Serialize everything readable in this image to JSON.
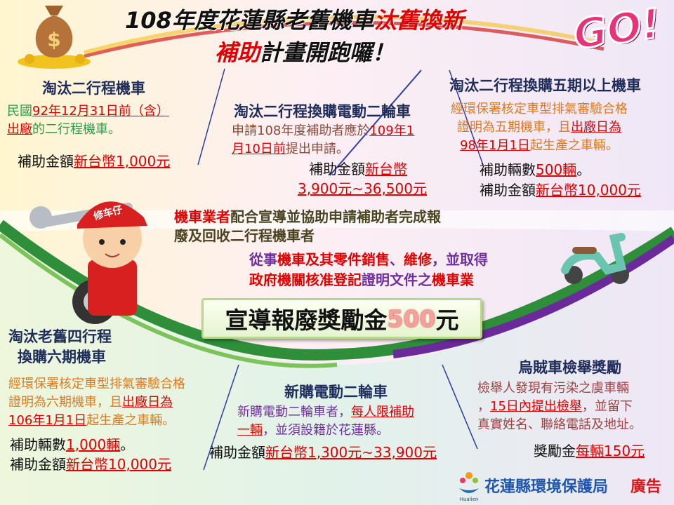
{
  "header": {
    "title_line1": [
      {
        "t": "108年度花蓮縣老舊機車",
        "s": "k"
      },
      {
        "t": "汰舊換新",
        "s": "rp"
      }
    ],
    "title_line2": [
      {
        "t": "補助",
        "s": "rp"
      },
      {
        "t": "計畫開跑囉！",
        "s": "k"
      }
    ],
    "go_badge": "GO!"
  },
  "sections": {
    "two_stroke": {
      "title": "淘汰二行程機車",
      "lines": [
        [
          {
            "t": "民國",
            "s": "g"
          },
          {
            "t": "92年12月31日前（含）",
            "s": "r"
          }
        ],
        [
          {
            "t": "出廠",
            "s": "r"
          },
          {
            "t": "的二行程機車。",
            "s": "g"
          }
        ]
      ],
      "amount": [
        {
          "t": "補助金額",
          "s": "k"
        },
        {
          "t": "新台幣1,000元",
          "s": "r"
        }
      ]
    },
    "two_stroke_to_electric": {
      "title": "淘汰二行程換購電動二輪車",
      "lines": [
        [
          {
            "t": "申請108年度補助者應於",
            "s": "b"
          },
          {
            "t": "109年1",
            "s": "r"
          }
        ],
        [
          {
            "t": "月10日前",
            "s": "r"
          },
          {
            "t": "提出申請。",
            "s": "b"
          }
        ]
      ],
      "amount": [
        {
          "t": "補助金額",
          "s": "k"
        },
        {
          "t": "新台幣",
          "s": "r"
        }
      ],
      "amount2": [
        {
          "t": "3,900元~36,500元",
          "s": "r"
        }
      ]
    },
    "two_stroke_to_phase5": {
      "title": "淘汰二行程換購五期以上機車",
      "lines": [
        [
          {
            "t": "經環保署核定車型排氣審驗合格",
            "s": "o"
          }
        ],
        [
          {
            "t": "證明為五期機車，且",
            "s": "o"
          },
          {
            "t": "出廠日為",
            "s": "r"
          }
        ],
        [
          {
            "t": "98年1月1日",
            "s": "r"
          },
          {
            "t": "起生產之車輛。",
            "s": "o"
          }
        ]
      ],
      "count": [
        {
          "t": "補助輛數",
          "s": "k"
        },
        {
          "t": "500輛",
          "s": "r"
        },
        {
          "t": "。",
          "s": "k"
        }
      ],
      "amount": [
        {
          "t": "補助金額",
          "s": "k"
        },
        {
          "t": "新台幣10,000元",
          "s": "r"
        }
      ]
    },
    "dealer": {
      "lines": [
        [
          {
            "t": "機車業者",
            "s": "rp"
          },
          {
            "t": "配合宣導並協助申請補助者完成報",
            "s": "d"
          }
        ],
        [
          {
            "t": "廢及回收二行程機車者",
            "s": "d"
          }
        ]
      ],
      "qual_lines": [
        [
          {
            "t": "從事",
            "s": "p"
          },
          {
            "t": "機車及其零件銷售",
            "s": "rp"
          },
          {
            "t": "、",
            "s": "p"
          },
          {
            "t": "維修",
            "s": "rp"
          },
          {
            "t": "，並取得",
            "s": "p"
          }
        ],
        [
          {
            "t": "政府機關核准登記",
            "s": "rp"
          },
          {
            "t": "證明文件之",
            "s": "p"
          },
          {
            "t": "機車業",
            "s": "rp"
          }
        ]
      ],
      "banner": [
        {
          "t": "宣導報廢獎勵金",
          "s": "k"
        },
        {
          "t": "500",
          "s": "num"
        },
        {
          "t": "元",
          "s": "k"
        }
      ]
    },
    "four_stroke_to_phase6": {
      "title_line1": "淘汰老舊四行程",
      "title_line2": "換購六期機車",
      "lines": [
        [
          {
            "t": "經環保署核定車型排氣審驗合格",
            "s": "o"
          }
        ],
        [
          {
            "t": "證明為六期機車，且",
            "s": "o"
          },
          {
            "t": "出廠日為",
            "s": "r"
          }
        ],
        [
          {
            "t": "106年1月1日",
            "s": "r"
          },
          {
            "t": "起生產之車輛。",
            "s": "o"
          }
        ]
      ],
      "count": [
        {
          "t": "補助輛數",
          "s": "k"
        },
        {
          "t": "1,000輛",
          "s": "r"
        },
        {
          "t": "。",
          "s": "k"
        }
      ],
      "amount": [
        {
          "t": "補助金額",
          "s": "k"
        },
        {
          "t": "新台幣10,000元",
          "s": "r"
        }
      ]
    },
    "new_electric": {
      "title": "新購電動二輪車",
      "lines": [
        [
          {
            "t": "新購電動二輪車者，",
            "s": "p"
          },
          {
            "t": "每人限補助",
            "s": "r"
          }
        ],
        [
          {
            "t": "一輛",
            "s": "r"
          },
          {
            "t": "，並須設籍於花蓮縣。",
            "s": "p"
          }
        ]
      ],
      "amount": [
        {
          "t": "補助金額",
          "s": "k"
        },
        {
          "t": "新台幣1,300元~33,900元",
          "s": "r"
        }
      ]
    },
    "report_reward": {
      "title": "烏賊車檢舉獎勵",
      "lines": [
        [
          {
            "t": "檢舉人發現有污染之虞車輛",
            "s": "br"
          }
        ],
        [
          {
            "t": "，",
            "s": "br"
          },
          {
            "t": "15日內提出檢舉",
            "s": "r"
          },
          {
            "t": "，並留下",
            "s": "br"
          }
        ],
        [
          {
            "t": "真實姓名、聯絡電話及地址。",
            "s": "br"
          }
        ]
      ],
      "amount": [
        {
          "t": "獎勵金",
          "s": "k"
        },
        {
          "t": "每輛150元",
          "s": "r"
        }
      ]
    }
  },
  "mascot": {
    "cap_text": "修车仔"
  },
  "footer": {
    "agency": "花蓮縣環境保護局",
    "ad_label": "廣告",
    "logo_text": "Hualien"
  },
  "colors": {
    "red": "#e00000",
    "navy": "#1f2d5c",
    "green_text": "#2e9a4a",
    "orange_text": "#e07a20",
    "purple_text": "#7030a0",
    "go_pink": "#e8327a"
  },
  "icons": [
    "money-bag-icon",
    "coins-icon",
    "mascot-mechanic-icon",
    "wrench-icon",
    "tire-icon",
    "scooter-icon",
    "agency-logo-icon"
  ]
}
